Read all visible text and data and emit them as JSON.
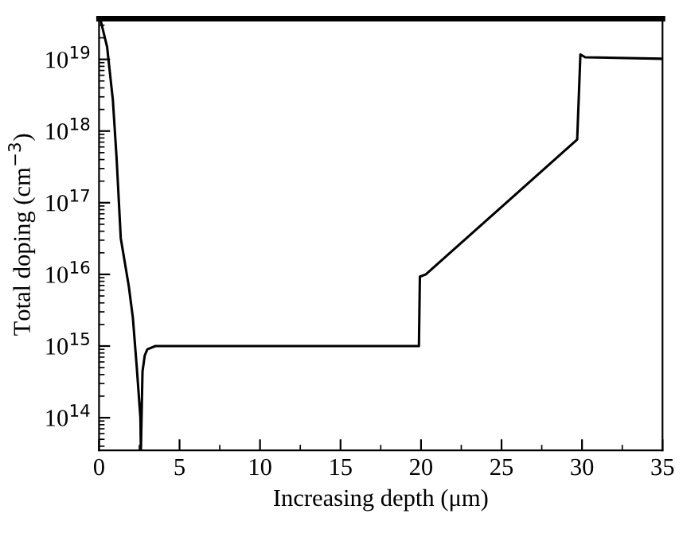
{
  "chart_data": {
    "type": "line",
    "xlabel": "Increasing depth (μm)",
    "ylabel": "Total doping (cm$^{−3}$)",
    "log": "y",
    "x": [
      0.1,
      0.5,
      0.86,
      1.09,
      1.35,
      1.85,
      2.1,
      2.34,
      2.57,
      2.6,
      2.7,
      2.84,
      3.0,
      3.5,
      19.87,
      19.93,
      20.3,
      29.7,
      29.9,
      30.2,
      35
    ],
    "series": [
      {
        "color": "#000000",
        "values": [
          3.5e+19,
          1.5e+19,
          2.7e+18,
          4.2e+17,
          3.2e+16,
          6800000000000000.0,
          2500000000000000.0,
          520000000000000.0,
          100000000000000.0,
          35000000000000.0,
          440000000000000.0,
          740000000000000.0,
          900000000000000.0,
          1000000000000000.0,
          1000000000000000.0,
          9300000000000000.0,
          1e+16,
          7.6e+17,
          1.17e+19,
          1.07e+19,
          1.02e+19
        ]
      }
    ],
    "xlim": [
      0,
      35
    ],
    "ylim": [
      35000000000000.0,
      3.7e+19
    ],
    "xticks": [
      0,
      5,
      10,
      15,
      20,
      25,
      30,
      35
    ],
    "yticks": [
      {
        "value": 100000000000000.0,
        "label": "10$^{14}$"
      },
      {
        "value": 1000000000000000.0,
        "label": "10$^{15}$"
      },
      {
        "value": 1e+16,
        "label": "10$^{16}$"
      },
      {
        "value": 1e+17,
        "label": "10$^{17}$"
      },
      {
        "value": 1e+18,
        "label": "10$^{18}$"
      },
      {
        "value": 1e+19,
        "label": "10$^{19}$"
      }
    ],
    "grid": false,
    "legend": false,
    "marker": "none",
    "line_style": "solid"
  }
}
